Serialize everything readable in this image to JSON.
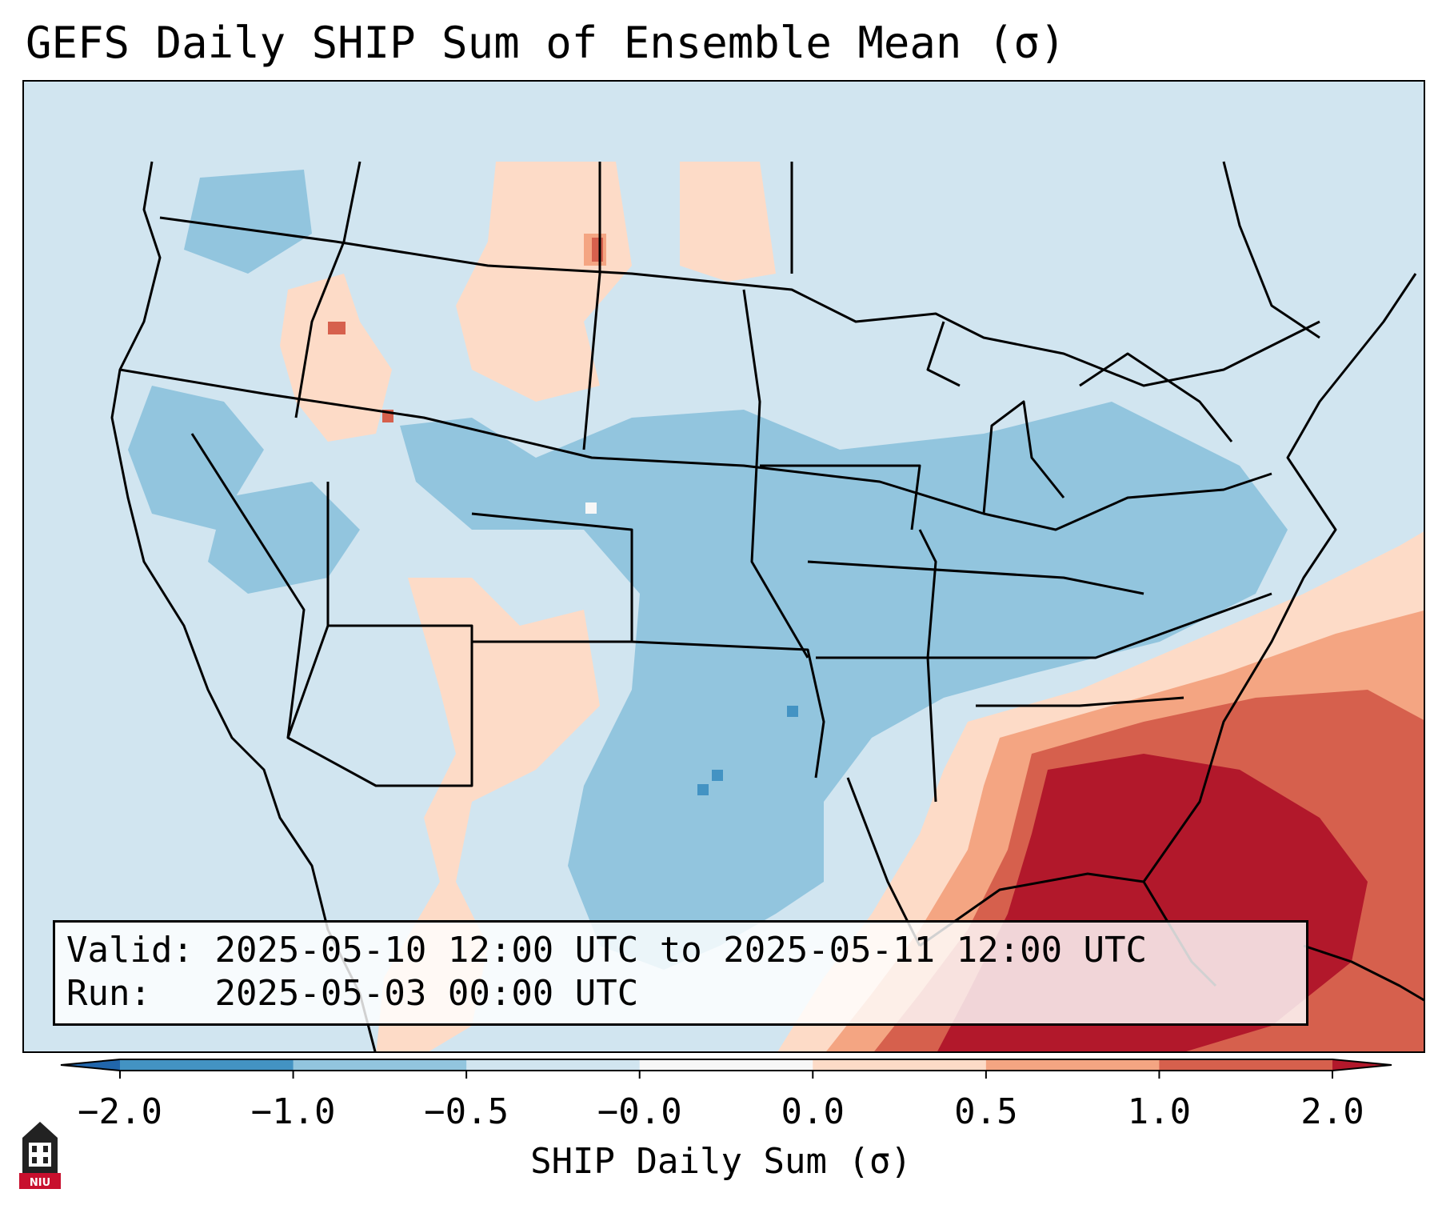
{
  "title": "GEFS Daily SHIP Sum of Ensemble Mean (σ)",
  "info": {
    "valid_label": "Valid:",
    "valid_value": "2025-05-10 12:00 UTC to 2025-05-11 12:00 UTC",
    "run_label": "Run:",
    "run_value": "2025-05-03 00:00 UTC"
  },
  "colorbar": {
    "label": "SHIP Daily Sum (σ)",
    "ticks": [
      "−2.0",
      "−1.0",
      "−0.5",
      "−0.0",
      "0.0",
      "0.5",
      "1.0",
      "2.0"
    ],
    "bins": [
      {
        "range": "−2.0 to −1.0",
        "color": "#4393c3"
      },
      {
        "range": "−1.0 to −0.5",
        "color": "#92c5de"
      },
      {
        "range": "−0.5 to −0.0",
        "color": "#d1e5f0"
      },
      {
        "range": "−0.0 to 0.0",
        "color": "#f7f7f7"
      },
      {
        "range": "0.0 to 0.5",
        "color": "#fddbc7"
      },
      {
        "range": "0.5 to 1.0",
        "color": "#f4a582"
      },
      {
        "range": "1.0 to 2.0",
        "color": "#d6604d"
      }
    ],
    "under_color": "#2166ac",
    "over_color": "#b2182b",
    "extend": "both"
  },
  "logo": {
    "text": "NIU",
    "accent": "#c8102e"
  },
  "map": {
    "projection": "Lambert conformal, CONUS",
    "background_color": "#d1e5f0"
  }
}
